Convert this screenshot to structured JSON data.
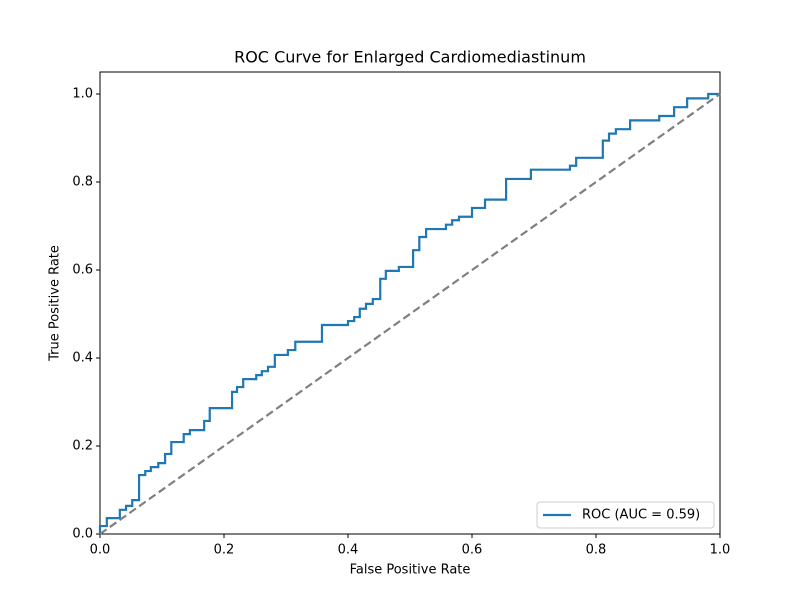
{
  "chart_data": {
    "type": "line",
    "title": "ROC Curve for Enlarged Cardiomediastinum",
    "xlabel": "False Positive Rate",
    "ylabel": "True Positive Rate",
    "xlim": [
      0,
      1
    ],
    "ylim": [
      0,
      1.05
    ],
    "xticks": [
      {
        "value": 0,
        "label": "0.0"
      },
      0.2,
      0.4,
      0.6,
      0.8,
      {
        "value": 1,
        "label": "1.0"
      }
    ],
    "yticks": [
      {
        "value": 0,
        "label": "0.0"
      },
      0.2,
      0.4,
      0.6,
      0.8,
      {
        "value": 1,
        "label": "1.0"
      }
    ],
    "legend": "lower right",
    "series": [
      {
        "name": "ROC (AUC = 0.59)",
        "color": "#1f77b4",
        "x": [
          0,
          0,
          0.011,
          0.011,
          0.032,
          0.032,
          0.042,
          0.042,
          0.052,
          0.052,
          0.063,
          0.063,
          0.073,
          0.073,
          0.082,
          0.082,
          0.094,
          0.094,
          0.105,
          0.105,
          0.115,
          0.115,
          0.135,
          0.135,
          0.145,
          0.145,
          0.168,
          0.168,
          0.177,
          0.177,
          0.213,
          0.213,
          0.221,
          0.221,
          0.231,
          0.231,
          0.252,
          0.252,
          0.261,
          0.261,
          0.271,
          0.271,
          0.282,
          0.282,
          0.303,
          0.303,
          0.315,
          0.315,
          0.358,
          0.358,
          0.4,
          0.4,
          0.41,
          0.41,
          0.419,
          0.419,
          0.429,
          0.429,
          0.44,
          0.44,
          0.452,
          0.452,
          0.461,
          0.461,
          0.482,
          0.482,
          0.505,
          0.505,
          0.515,
          0.515,
          0.526,
          0.526,
          0.558,
          0.558,
          0.568,
          0.568,
          0.579,
          0.579,
          0.6,
          0.6,
          0.621,
          0.621,
          0.655,
          0.655,
          0.695,
          0.695,
          0.758,
          0.758,
          0.768,
          0.768,
          0.811,
          0.811,
          0.821,
          0.821,
          0.832,
          0.832,
          0.855,
          0.855,
          0.902,
          0.902,
          0.926,
          0.926,
          0.947,
          0.947,
          0.981,
          0.981,
          1.0
        ],
        "values": [
          0,
          0.018,
          0.018,
          0.036,
          0.036,
          0.055,
          0.055,
          0.064,
          0.064,
          0.077,
          0.077,
          0.134,
          0.134,
          0.143,
          0.143,
          0.152,
          0.152,
          0.161,
          0.161,
          0.182,
          0.182,
          0.209,
          0.209,
          0.227,
          0.227,
          0.236,
          0.236,
          0.257,
          0.257,
          0.286,
          0.286,
          0.323,
          0.323,
          0.334,
          0.334,
          0.352,
          0.352,
          0.361,
          0.361,
          0.37,
          0.37,
          0.38,
          0.38,
          0.407,
          0.407,
          0.418,
          0.418,
          0.437,
          0.437,
          0.475,
          0.475,
          0.484,
          0.484,
          0.493,
          0.493,
          0.512,
          0.512,
          0.523,
          0.523,
          0.534,
          0.534,
          0.58,
          0.58,
          0.598,
          0.598,
          0.607,
          0.607,
          0.645,
          0.645,
          0.675,
          0.675,
          0.693,
          0.693,
          0.703,
          0.703,
          0.713,
          0.713,
          0.721,
          0.721,
          0.741,
          0.741,
          0.76,
          0.76,
          0.807,
          0.807,
          0.828,
          0.828,
          0.837,
          0.837,
          0.855,
          0.855,
          0.894,
          0.894,
          0.91,
          0.91,
          0.92,
          0.92,
          0.94,
          0.94,
          0.95,
          0.95,
          0.97,
          0.97,
          0.99,
          0.99,
          1.0,
          1.0
        ]
      },
      {
        "color": "#808080",
        "dashed": true,
        "x": [
          0,
          1
        ],
        "values": [
          0,
          1
        ]
      }
    ]
  }
}
